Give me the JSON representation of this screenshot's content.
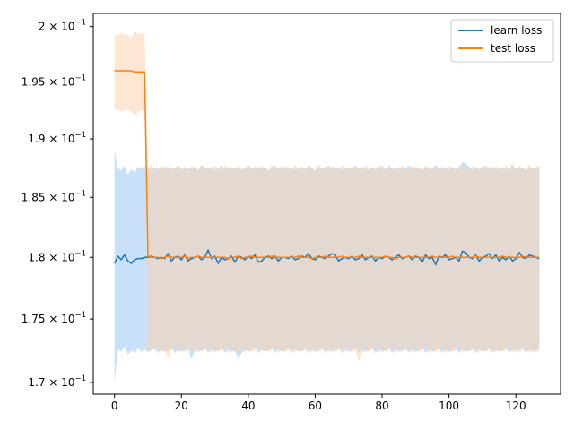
{
  "chart_data": {
    "type": "line",
    "title": "",
    "xlabel": "",
    "ylabel": "",
    "yscale": "log",
    "xlim": [
      -6.35,
      133.35
    ],
    "ylim": [
      0.1691,
      0.2012
    ],
    "xticks": [
      0,
      20,
      40,
      60,
      80,
      100,
      120
    ],
    "xtick_labels": [
      "0",
      "20",
      "40",
      "60",
      "80",
      "100",
      "120"
    ],
    "yticks": [
      0.17,
      0.175,
      0.18,
      0.185,
      0.19,
      0.195,
      0.2
    ],
    "ytick_labels": [
      {
        "mantissa": "1.7",
        "base": "10",
        "exp": "−1"
      },
      {
        "mantissa": "1.75",
        "base": "10",
        "exp": "−1"
      },
      {
        "mantissa": "1.8",
        "base": "10",
        "exp": "−1"
      },
      {
        "mantissa": "1.85",
        "base": "10",
        "exp": "−1"
      },
      {
        "mantissa": "1.9",
        "base": "10",
        "exp": "−1"
      },
      {
        "mantissa": "1.95",
        "base": "10",
        "exp": "−1"
      },
      {
        "mantissa": "2",
        "base": "10",
        "exp": "−1"
      }
    ],
    "grid": false,
    "legend": {
      "position": "upper right"
    },
    "series": [
      {
        "name": "learn loss",
        "color": "#1f77b4",
        "band_color": "#b5d7f7",
        "x_start": 0,
        "x_end": 127,
        "mean": [
          0.1795,
          0.1801,
          0.1798,
          0.1802,
          0.1797,
          0.1795,
          0.1798,
          0.1799,
          0.1799,
          0.18,
          0.18,
          0.1801,
          0.18,
          0.1799,
          0.18,
          0.1799,
          0.1803,
          0.1797,
          0.18,
          0.1801,
          0.1798,
          0.1802,
          0.1797,
          0.1799,
          0.18,
          0.1801,
          0.1798,
          0.18,
          0.1806,
          0.1799,
          0.1801,
          0.1795,
          0.18,
          0.1798,
          0.1799,
          0.1801,
          0.1796,
          0.1801,
          0.18,
          0.1798,
          0.1801,
          0.1799,
          0.1802,
          0.1796,
          0.1797,
          0.18,
          0.1801,
          0.1799,
          0.1801,
          0.1797,
          0.18,
          0.18,
          0.1799,
          0.1801,
          0.1798,
          0.1799,
          0.1801,
          0.18,
          0.1803,
          0.1799,
          0.1798,
          0.1801,
          0.18,
          0.1799,
          0.1801,
          0.1803,
          0.1802,
          0.1797,
          0.1799,
          0.18,
          0.1799,
          0.1801,
          0.1798,
          0.1799,
          0.1802,
          0.1798,
          0.18,
          0.1801,
          0.1797,
          0.18,
          0.1799,
          0.1801,
          0.18,
          0.1798,
          0.18,
          0.1802,
          0.1799,
          0.18,
          0.1801,
          0.1798,
          0.1801,
          0.18,
          0.1796,
          0.1802,
          0.1799,
          0.18,
          0.1794,
          0.1801,
          0.18,
          0.1802,
          0.1798,
          0.1799,
          0.18,
          0.1797,
          0.1805,
          0.1804,
          0.18,
          0.1799,
          0.1802,
          0.1797,
          0.18,
          0.1801,
          0.1803,
          0.1799,
          0.1802,
          0.1797,
          0.18,
          0.1798,
          0.1801,
          0.1797,
          0.1799,
          0.1804,
          0.18,
          0.1799,
          0.1802,
          0.1801,
          0.18,
          0.1799
        ],
        "band_upper": [
          0.189,
          0.1875,
          0.1873,
          0.1877,
          0.1869,
          0.1874,
          0.1871,
          0.1876,
          0.1875,
          0.1876,
          0.1875,
          0.1874,
          0.1876,
          0.1873,
          0.1877,
          0.1874,
          0.1876,
          0.1874,
          0.1875,
          0.1877,
          0.1873,
          0.1876,
          0.1874,
          0.1875,
          0.1876,
          0.1873,
          0.1877,
          0.1875,
          0.1874,
          0.1876,
          0.1873,
          0.1875,
          0.1877,
          0.1874,
          0.1876,
          0.1874,
          0.1875,
          0.1876,
          0.1873,
          0.1875,
          0.1877,
          0.1874,
          0.1876,
          0.1875,
          0.1874,
          0.1876,
          0.1873,
          0.1875,
          0.1877,
          0.1874,
          0.1876,
          0.1875,
          0.1874,
          0.1876,
          0.1873,
          0.1875,
          0.1876,
          0.1874,
          0.1877,
          0.1875,
          0.1873,
          0.1876,
          0.1874,
          0.1875,
          0.1877,
          0.1874,
          0.1876,
          0.1875,
          0.1873,
          0.1876,
          0.1874,
          0.1875,
          0.1877,
          0.1874,
          0.1876,
          0.1875,
          0.1873,
          0.1876,
          0.1874,
          0.1875,
          0.1877,
          0.1874,
          0.1876,
          0.1875,
          0.1873,
          0.1876,
          0.1874,
          0.1875,
          0.1877,
          0.1874,
          0.1876,
          0.1875,
          0.1873,
          0.1876,
          0.1874,
          0.1875,
          0.1877,
          0.1874,
          0.1876,
          0.1875,
          0.1873,
          0.1876,
          0.1874,
          0.1875,
          0.188,
          0.1879,
          0.1876,
          0.1873,
          0.1876,
          0.1874,
          0.1875,
          0.1877,
          0.1874,
          0.1876,
          0.1875,
          0.1873,
          0.1876,
          0.1874,
          0.1875,
          0.1877,
          0.1874,
          0.1876,
          0.1875,
          0.1873,
          0.1876,
          0.1874,
          0.1875,
          0.1876
        ],
        "band_lower": [
          0.17,
          0.1726,
          0.1724,
          0.1728,
          0.1722,
          0.1725,
          0.1723,
          0.1727,
          0.1724,
          0.1726,
          0.1724,
          0.1725,
          0.1727,
          0.1723,
          0.1726,
          0.1724,
          0.1725,
          0.1727,
          0.1723,
          0.1726,
          0.1724,
          0.1725,
          0.1727,
          0.1718,
          0.1726,
          0.1724,
          0.1725,
          0.1727,
          0.1723,
          0.1726,
          0.1724,
          0.1725,
          0.1727,
          0.1723,
          0.1726,
          0.1724,
          0.1725,
          0.1719,
          0.1723,
          0.1726,
          0.1724,
          0.1725,
          0.1727,
          0.1723,
          0.1726,
          0.1724,
          0.1725,
          0.1727,
          0.1723,
          0.1726,
          0.1724,
          0.1725,
          0.1727,
          0.1723,
          0.1726,
          0.1724,
          0.1725,
          0.1727,
          0.1723,
          0.1726,
          0.1724,
          0.1725,
          0.1727,
          0.1723,
          0.1726,
          0.1724,
          0.1725,
          0.1727,
          0.1723,
          0.1726,
          0.1724,
          0.1725,
          0.1727,
          0.1723,
          0.1726,
          0.1724,
          0.1725,
          0.1727,
          0.1723,
          0.1726,
          0.1724,
          0.1725,
          0.1727,
          0.1723,
          0.1726,
          0.1724,
          0.1725,
          0.1727,
          0.1723,
          0.1726,
          0.1724,
          0.1725,
          0.1727,
          0.1723,
          0.1726,
          0.1724,
          0.1725,
          0.1727,
          0.1723,
          0.1726,
          0.1724,
          0.1725,
          0.1727,
          0.1723,
          0.1726,
          0.1724,
          0.1725,
          0.1727,
          0.1723,
          0.1726,
          0.1724,
          0.1725,
          0.1727,
          0.1723,
          0.1726,
          0.1724,
          0.1725,
          0.1727,
          0.1723,
          0.1726,
          0.1724,
          0.1725,
          0.1727,
          0.1723,
          0.1726,
          0.1724,
          0.1725,
          0.1726
        ]
      },
      {
        "name": "test loss",
        "color": "#ff7f0e",
        "band_color": "#fcd3ae",
        "x_start": 0,
        "x_end": 127,
        "mean": [
          0.196,
          0.196,
          0.196,
          0.196,
          0.196,
          0.196,
          0.1959,
          0.1959,
          0.1959,
          0.1959,
          0.1801,
          0.18,
          0.18,
          0.18,
          0.1799,
          0.18,
          0.1801,
          0.18,
          0.18,
          0.18,
          0.18,
          0.1801,
          0.1799,
          0.18,
          0.18,
          0.1801,
          0.18,
          0.18,
          0.18,
          0.18,
          0.18,
          0.18,
          0.18,
          0.18,
          0.1799,
          0.18,
          0.18,
          0.1801,
          0.1799,
          0.18,
          0.18,
          0.1801,
          0.18,
          0.18,
          0.18,
          0.18,
          0.18,
          0.1801,
          0.18,
          0.18,
          0.18,
          0.18,
          0.18,
          0.18,
          0.18,
          0.1801,
          0.18,
          0.18,
          0.18,
          0.1799,
          0.18,
          0.18,
          0.18,
          0.1801,
          0.18,
          0.18,
          0.18,
          0.18,
          0.1801,
          0.18,
          0.18,
          0.18,
          0.18,
          0.1801,
          0.18,
          0.18,
          0.18,
          0.18,
          0.18,
          0.18,
          0.18,
          0.1801,
          0.18,
          0.18,
          0.1799,
          0.18,
          0.18,
          0.18,
          0.1801,
          0.18,
          0.18,
          0.18,
          0.18,
          0.18,
          0.18,
          0.1801,
          0.18,
          0.18,
          0.18,
          0.18,
          0.18,
          0.1801,
          0.18,
          0.18,
          0.18,
          0.18,
          0.18,
          0.18,
          0.1801,
          0.18,
          0.18,
          0.18,
          0.18,
          0.18,
          0.18,
          0.18,
          0.1801,
          0.18,
          0.18,
          0.18,
          0.18,
          0.18,
          0.1801,
          0.18,
          0.18,
          0.18,
          0.18,
          0.18
        ],
        "band_upper": [
          0.1992,
          0.1992,
          0.1994,
          0.1993,
          0.1992,
          0.199,
          0.1996,
          0.1993,
          0.1994,
          0.1993,
          0.1875,
          0.1879,
          0.187,
          0.1876,
          0.1873,
          0.1877,
          0.1874,
          0.1876,
          0.1873,
          0.1878,
          0.1874,
          0.1876,
          0.1872,
          0.1877,
          0.1875,
          0.1873,
          0.1878,
          0.1874,
          0.1876,
          0.1873,
          0.1877,
          0.1875,
          0.1872,
          0.1878,
          0.1874,
          0.1876,
          0.1873,
          0.1877,
          0.1875,
          0.1872,
          0.1878,
          0.1874,
          0.1876,
          0.1873,
          0.1877,
          0.1875,
          0.1872,
          0.1878,
          0.1874,
          0.1876,
          0.1873,
          0.1877,
          0.1875,
          0.1872,
          0.1878,
          0.1874,
          0.1876,
          0.1873,
          0.1877,
          0.1875,
          0.1872,
          0.1878,
          0.1874,
          0.1876,
          0.1873,
          0.1877,
          0.1875,
          0.1872,
          0.1878,
          0.1874,
          0.1876,
          0.1873,
          0.1877,
          0.1875,
          0.1872,
          0.1878,
          0.1874,
          0.1876,
          0.1873,
          0.1877,
          0.1875,
          0.1872,
          0.1878,
          0.1874,
          0.1876,
          0.1873,
          0.1877,
          0.1875,
          0.1872,
          0.1878,
          0.1874,
          0.1876,
          0.1873,
          0.1877,
          0.1875,
          0.1872,
          0.1878,
          0.1874,
          0.1876,
          0.1873,
          0.1877,
          0.1875,
          0.1872,
          0.1878,
          0.1874,
          0.1876,
          0.1873,
          0.1877,
          0.1875,
          0.1872,
          0.1878,
          0.1874,
          0.1876,
          0.1873,
          0.1877,
          0.1875,
          0.1872,
          0.1878,
          0.1874,
          0.188,
          0.1873,
          0.1877,
          0.1875,
          0.1872,
          0.1878,
          0.1874,
          0.1876,
          0.1877
        ],
        "band_lower": [
          0.1925,
          0.1926,
          0.1924,
          0.1925,
          0.1926,
          0.1924,
          0.1921,
          0.1923,
          0.1925,
          0.1924,
          0.1724,
          0.1726,
          0.1725,
          0.1727,
          0.1723,
          0.1726,
          0.1719,
          0.1725,
          0.1727,
          0.1723,
          0.1726,
          0.1724,
          0.1725,
          0.1727,
          0.1723,
          0.1726,
          0.1724,
          0.1725,
          0.1727,
          0.1723,
          0.1726,
          0.1724,
          0.1725,
          0.1727,
          0.1723,
          0.1726,
          0.1724,
          0.1725,
          0.1727,
          0.1723,
          0.1726,
          0.1724,
          0.1725,
          0.1727,
          0.1723,
          0.1726,
          0.1724,
          0.1725,
          0.1727,
          0.1723,
          0.1726,
          0.1724,
          0.1725,
          0.1727,
          0.1723,
          0.1726,
          0.1724,
          0.1725,
          0.1727,
          0.1723,
          0.1726,
          0.1724,
          0.1725,
          0.1727,
          0.1723,
          0.1726,
          0.1724,
          0.1725,
          0.1727,
          0.1723,
          0.1726,
          0.1724,
          0.1725,
          0.1716,
          0.1723,
          0.1726,
          0.1724,
          0.1725,
          0.1727,
          0.1723,
          0.1726,
          0.1724,
          0.1725,
          0.1727,
          0.1723,
          0.1726,
          0.1724,
          0.1725,
          0.1727,
          0.1723,
          0.1726,
          0.1724,
          0.1725,
          0.1727,
          0.1723,
          0.1726,
          0.1724,
          0.1725,
          0.1727,
          0.1723,
          0.1726,
          0.1724,
          0.1725,
          0.1727,
          0.1723,
          0.1726,
          0.1724,
          0.1725,
          0.1727,
          0.1723,
          0.1726,
          0.1724,
          0.1725,
          0.1727,
          0.1723,
          0.1726,
          0.1724,
          0.1725,
          0.1727,
          0.1723,
          0.1726,
          0.1724,
          0.1725,
          0.1727,
          0.1723,
          0.1726,
          0.1724,
          0.1725
        ]
      }
    ]
  }
}
